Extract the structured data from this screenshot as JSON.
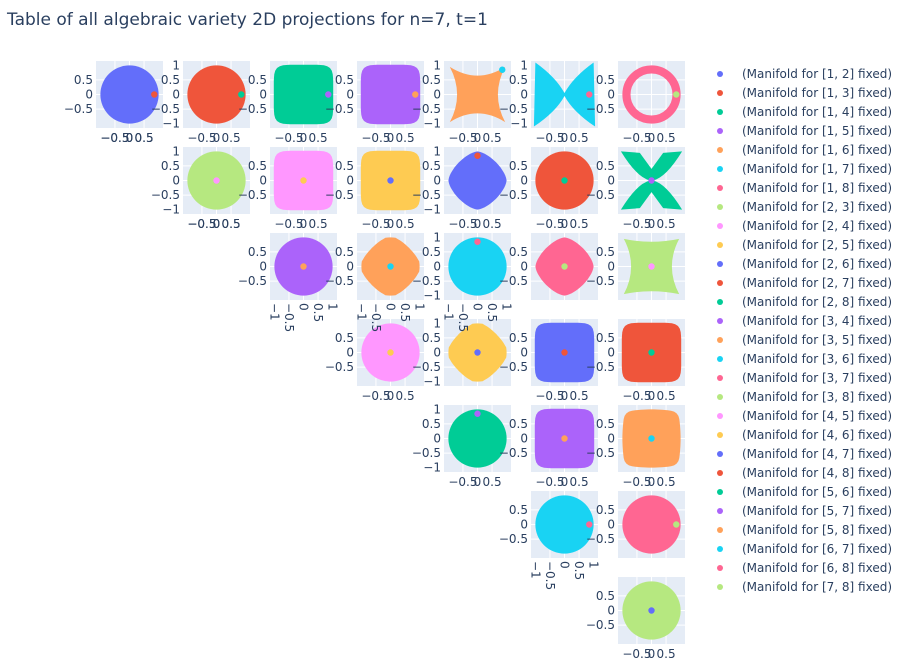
{
  "title": "Table of all algebraic variety 2D projections for n=7, t=1",
  "tick_text": {
    "t_0_5": "0.5",
    "t_0": "0",
    "t_m0_5": "−0.5",
    "t_1": "1",
    "t_m1": "−1",
    "t_m1_0_5": "−1 0.5",
    "t_1_0_5": "1 0.5"
  },
  "chart_data": {
    "type": "scatter",
    "title": "Table of all algebraic variety 2D projections for n=7, t=1",
    "description_type": "grid of 28 filled-region scatter subplots (upper triangle), each with one marker point",
    "legend_placement": "right",
    "grid": true,
    "series": [
      {
        "name": "(Manifold for [1, 2] fixed)",
        "color": "#636efa",
        "subplot": [
          1,
          1
        ],
        "shape": "disk",
        "marker": [
          0.85,
          0
        ]
      },
      {
        "name": "(Manifold for [1, 3] fixed)",
        "color": "#EF553B",
        "subplot": [
          1,
          2
        ],
        "shape": "disk",
        "marker": [
          0.85,
          0
        ]
      },
      {
        "name": "(Manifold for [1, 4] fixed)",
        "color": "#00cc96",
        "subplot": [
          1,
          3
        ],
        "shape": "rounded-square",
        "marker": [
          0.85,
          0
        ]
      },
      {
        "name": "(Manifold for [1, 5] fixed)",
        "color": "#ab63fa",
        "subplot": [
          1,
          4
        ],
        "shape": "rounded-square",
        "marker": [
          0.85,
          0
        ]
      },
      {
        "name": "(Manifold for [1, 6] fixed)",
        "color": "#FFA15A",
        "subplot": [
          1,
          5
        ],
        "shape": "concave-hourglass-horizontal",
        "marker": [
          0.85,
          0.85
        ]
      },
      {
        "name": "(Manifold for [1, 7] fixed)",
        "color": "#19d3f3",
        "subplot": [
          1,
          6
        ],
        "shape": "bowtie",
        "marker": [
          0.85,
          0
        ]
      },
      {
        "name": "(Manifold for [1, 8] fixed)",
        "color": "#FF6692",
        "subplot": [
          1,
          7
        ],
        "shape": "annulus",
        "marker": [
          0.85,
          0
        ]
      },
      {
        "name": "(Manifold for [2, 3] fixed)",
        "color": "#B6E880",
        "subplot": [
          2,
          2
        ],
        "shape": "disk",
        "marker": [
          0,
          0
        ]
      },
      {
        "name": "(Manifold for [2, 4] fixed)",
        "color": "#FF97FF",
        "subplot": [
          2,
          3
        ],
        "shape": "rounded-square",
        "marker": [
          0,
          0
        ]
      },
      {
        "name": "(Manifold for [2, 5] fixed)",
        "color": "#FECB52",
        "subplot": [
          2,
          4
        ],
        "shape": "rounded-square",
        "marker": [
          0,
          0
        ]
      },
      {
        "name": "(Manifold for [2, 6] fixed)",
        "color": "#636efa",
        "subplot": [
          2,
          5
        ],
        "shape": "rounded-diamond",
        "marker": [
          0,
          0.85
        ]
      },
      {
        "name": "(Manifold for [2, 7] fixed)",
        "color": "#EF553B",
        "subplot": [
          2,
          6
        ],
        "shape": "disk",
        "marker": [
          0,
          0
        ]
      },
      {
        "name": "(Manifold for [2, 8] fixed)",
        "color": "#00cc96",
        "subplot": [
          2,
          7
        ],
        "shape": "hourglass-vertical",
        "marker": [
          0,
          0
        ]
      },
      {
        "name": "(Manifold for [3, 4] fixed)",
        "color": "#ab63fa",
        "subplot": [
          3,
          3
        ],
        "shape": "disk",
        "marker": [
          0,
          0
        ]
      },
      {
        "name": "(Manifold for [3, 5] fixed)",
        "color": "#FFA15A",
        "subplot": [
          3,
          4
        ],
        "shape": "octagon",
        "marker": [
          0,
          0
        ]
      },
      {
        "name": "(Manifold for [3, 6] fixed)",
        "color": "#19d3f3",
        "subplot": [
          3,
          5
        ],
        "shape": "disk",
        "marker": [
          0,
          0.85
        ]
      },
      {
        "name": "(Manifold for [3, 7] fixed)",
        "color": "#FF6692",
        "subplot": [
          3,
          6
        ],
        "shape": "rounded-diamond",
        "marker": [
          0,
          0
        ]
      },
      {
        "name": "(Manifold for [3, 8] fixed)",
        "color": "#B6E880",
        "subplot": [
          3,
          7
        ],
        "shape": "concave-hourglass-vertical",
        "marker": [
          0,
          0
        ]
      },
      {
        "name": "(Manifold for [4, 5] fixed)",
        "color": "#FF97FF",
        "subplot": [
          4,
          4
        ],
        "shape": "disk",
        "marker": [
          0,
          0
        ]
      },
      {
        "name": "(Manifold for [4, 6] fixed)",
        "color": "#FECB52",
        "subplot": [
          4,
          5
        ],
        "shape": "octagon",
        "marker": [
          0,
          0
        ]
      },
      {
        "name": "(Manifold for [4, 7] fixed)",
        "color": "#636efa",
        "subplot": [
          4,
          6
        ],
        "shape": "rounded-square",
        "marker": [
          0,
          0
        ]
      },
      {
        "name": "(Manifold for [4, 8] fixed)",
        "color": "#EF553B",
        "subplot": [
          4,
          7
        ],
        "shape": "rounded-square",
        "marker": [
          0,
          0
        ]
      },
      {
        "name": "(Manifold for [5, 6] fixed)",
        "color": "#00cc96",
        "subplot": [
          5,
          5
        ],
        "shape": "disk",
        "marker": [
          0,
          0.85
        ]
      },
      {
        "name": "(Manifold for [5, 7] fixed)",
        "color": "#ab63fa",
        "subplot": [
          5,
          6
        ],
        "shape": "rounded-square",
        "marker": [
          0,
          0
        ]
      },
      {
        "name": "(Manifold for [5, 8] fixed)",
        "color": "#FFA15A",
        "subplot": [
          5,
          7
        ],
        "shape": "concave-square",
        "marker": [
          0,
          0
        ]
      },
      {
        "name": "(Manifold for [6, 7] fixed)",
        "color": "#19d3f3",
        "subplot": [
          6,
          6
        ],
        "shape": "disk",
        "marker": [
          0.85,
          0
        ]
      },
      {
        "name": "(Manifold for [6, 8] fixed)",
        "color": "#FF6692",
        "subplot": [
          6,
          7
        ],
        "shape": "disk",
        "marker": [
          0.85,
          0
        ]
      },
      {
        "name": "(Manifold for [7, 8] fixed)",
        "color": "#B6E880",
        "subplot": [
          7,
          7
        ],
        "shape": "disk",
        "marker": [
          0,
          0
        ]
      }
    ]
  }
}
